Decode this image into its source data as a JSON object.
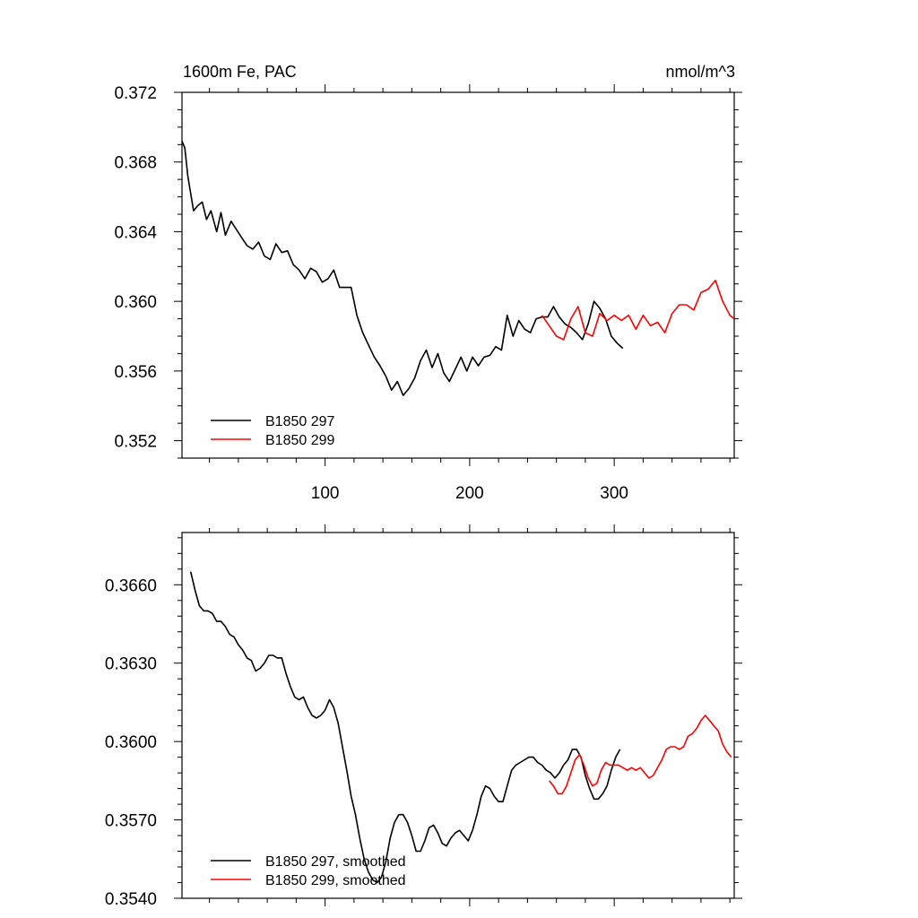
{
  "chart_data": [
    {
      "type": "line",
      "title": "1600m Fe, PAC",
      "units": "nmol/m^3",
      "xlabel": "",
      "ylabel": "",
      "xlim": [
        1,
        383
      ],
      "ylim": [
        0.351,
        0.372
      ],
      "y_ticks": [
        0.352,
        0.356,
        0.36,
        0.364,
        0.368,
        0.372
      ],
      "y_tick_labels": [
        "0.352",
        "0.356",
        "0.360",
        "0.364",
        "0.368",
        "0.372"
      ],
      "x_ticks": [
        100,
        200,
        300
      ],
      "x_tick_labels": [
        "100",
        "200",
        "300"
      ],
      "grid": false,
      "legend_position": "bottom-left",
      "series": [
        {
          "name": "B1850 297",
          "color": "#000000",
          "x": [
            1,
            3,
            5,
            7,
            9,
            12,
            15,
            18,
            21,
            25,
            28,
            31,
            35,
            38,
            42,
            46,
            50,
            54,
            58,
            62,
            66,
            70,
            74,
            78,
            82,
            86,
            90,
            94,
            98,
            102,
            106,
            110,
            114,
            118,
            122,
            126,
            130,
            134,
            138,
            142,
            146,
            150,
            154,
            158,
            162,
            166,
            170,
            174,
            178,
            182,
            186,
            190,
            194,
            198,
            202,
            206,
            210,
            214,
            218,
            222,
            226,
            230,
            234,
            238,
            242,
            246,
            250,
            254,
            258,
            262,
            266,
            270,
            274,
            278,
            282,
            286,
            290,
            294,
            298,
            302,
            306
          ],
          "values": [
            0.3692,
            0.3688,
            0.3672,
            0.3662,
            0.3652,
            0.3655,
            0.3657,
            0.3647,
            0.3652,
            0.364,
            0.3651,
            0.3638,
            0.3646,
            0.3642,
            0.3637,
            0.3632,
            0.363,
            0.3634,
            0.3626,
            0.3624,
            0.3633,
            0.3628,
            0.3629,
            0.3621,
            0.3618,
            0.3613,
            0.3619,
            0.3617,
            0.3611,
            0.3613,
            0.3618,
            0.3608,
            0.3608,
            0.3608,
            0.3592,
            0.3582,
            0.3575,
            0.3568,
            0.3563,
            0.3557,
            0.3549,
            0.3554,
            0.3546,
            0.355,
            0.3556,
            0.3566,
            0.3572,
            0.3562,
            0.357,
            0.3559,
            0.3554,
            0.3561,
            0.3568,
            0.356,
            0.3568,
            0.3563,
            0.3568,
            0.3569,
            0.3574,
            0.3572,
            0.3592,
            0.358,
            0.3589,
            0.3584,
            0.3582,
            0.359,
            0.3591,
            0.3591,
            0.3597,
            0.3591,
            0.3587,
            0.3585,
            0.3582,
            0.3578,
            0.3587,
            0.36,
            0.3596,
            0.359,
            0.358,
            0.3576,
            0.3573
          ]
        },
        {
          "name": "B1850 299",
          "color": "#ff0000",
          "x": [
            250,
            255,
            260,
            265,
            270,
            275,
            280,
            285,
            290,
            295,
            300,
            305,
            310,
            315,
            320,
            325,
            330,
            335,
            340,
            345,
            350,
            355,
            360,
            365,
            370,
            375,
            380,
            383
          ],
          "values": [
            0.3592,
            0.3586,
            0.358,
            0.3578,
            0.359,
            0.3597,
            0.3582,
            0.358,
            0.3593,
            0.3589,
            0.3592,
            0.3589,
            0.3592,
            0.3584,
            0.3592,
            0.3586,
            0.3588,
            0.3582,
            0.3593,
            0.3598,
            0.3598,
            0.3595,
            0.3605,
            0.3607,
            0.3612,
            0.36,
            0.3592,
            0.359
          ]
        }
      ]
    },
    {
      "type": "line",
      "title": "",
      "xlabel": "",
      "ylabel": "",
      "xlim": [
        1,
        383
      ],
      "ylim": [
        0.354,
        0.368
      ],
      "y_ticks": [
        0.354,
        0.357,
        0.36,
        0.363,
        0.366
      ],
      "y_tick_labels": [
        "0.3540",
        "0.3570",
        "0.3600",
        "0.3630",
        "0.3660"
      ],
      "grid": false,
      "legend_position": "bottom-left",
      "series": [
        {
          "name": "B1850 297, smoothed",
          "color": "#000000",
          "x": [
            7,
            10,
            13,
            16,
            19,
            22,
            25,
            28,
            31,
            34,
            37,
            40,
            43,
            46,
            49,
            52,
            55,
            58,
            61,
            64,
            67,
            70,
            73,
            76,
            79,
            82,
            85,
            88,
            91,
            94,
            97,
            100,
            103,
            106,
            109,
            112,
            115,
            118,
            121,
            124,
            127,
            130,
            133,
            136,
            139,
            142,
            145,
            148,
            151,
            154,
            157,
            160,
            163,
            166,
            169,
            172,
            175,
            178,
            181,
            184,
            187,
            190,
            193,
            196,
            199,
            202,
            205,
            208,
            211,
            214,
            217,
            220,
            223,
            226,
            229,
            232,
            235,
            238,
            241,
            244,
            247,
            250,
            253,
            256,
            259,
            262,
            265,
            268,
            271,
            274,
            277,
            280,
            283,
            286,
            289,
            292,
            295,
            298,
            301,
            304
          ],
          "values": [
            0.3665,
            0.3658,
            0.3652,
            0.365,
            0.365,
            0.3649,
            0.3646,
            0.3646,
            0.3644,
            0.3641,
            0.364,
            0.3637,
            0.3635,
            0.3632,
            0.3631,
            0.3627,
            0.3628,
            0.363,
            0.3633,
            0.3633,
            0.3632,
            0.3632,
            0.3626,
            0.3621,
            0.3617,
            0.3616,
            0.3617,
            0.3613,
            0.361,
            0.3609,
            0.361,
            0.3612,
            0.3616,
            0.3613,
            0.3607,
            0.3598,
            0.3589,
            0.3579,
            0.3572,
            0.3563,
            0.3555,
            0.355,
            0.3547,
            0.3546,
            0.3548,
            0.3554,
            0.3563,
            0.3569,
            0.3572,
            0.3572,
            0.3569,
            0.3564,
            0.3558,
            0.3558,
            0.3562,
            0.3567,
            0.3568,
            0.3565,
            0.3561,
            0.356,
            0.3563,
            0.3565,
            0.3566,
            0.3564,
            0.3562,
            0.3566,
            0.3572,
            0.3579,
            0.3583,
            0.3582,
            0.3579,
            0.3577,
            0.3577,
            0.3583,
            0.3589,
            0.3591,
            0.3592,
            0.3593,
            0.3594,
            0.3594,
            0.3592,
            0.3591,
            0.3589,
            0.3588,
            0.3586,
            0.3588,
            0.3591,
            0.3593,
            0.3597,
            0.3597,
            0.3594,
            0.3587,
            0.3582,
            0.3578,
            0.3578,
            0.358,
            0.3583,
            0.3589,
            0.3594,
            0.3597
          ]
        },
        {
          "name": "B1850 299, smoothed",
          "color": "#ff0000",
          "x": [
            255,
            258,
            261,
            264,
            267,
            270,
            273,
            276,
            279,
            282,
            285,
            288,
            291,
            294,
            297,
            300,
            303,
            306,
            309,
            312,
            315,
            318,
            321,
            324,
            327,
            330,
            333,
            336,
            339,
            342,
            345,
            348,
            351,
            354,
            357,
            360,
            363,
            366,
            369,
            372,
            375,
            378,
            381
          ],
          "values": [
            0.3585,
            0.3583,
            0.358,
            0.358,
            0.3583,
            0.3588,
            0.3593,
            0.3595,
            0.3591,
            0.3586,
            0.3583,
            0.3584,
            0.3589,
            0.3592,
            0.3591,
            0.3591,
            0.3591,
            0.359,
            0.3589,
            0.359,
            0.3589,
            0.359,
            0.3588,
            0.3586,
            0.3587,
            0.359,
            0.3593,
            0.3597,
            0.3598,
            0.3598,
            0.3597,
            0.3598,
            0.3602,
            0.3603,
            0.3605,
            0.3608,
            0.361,
            0.3608,
            0.3606,
            0.3604,
            0.3599,
            0.3596,
            0.3594
          ]
        }
      ]
    }
  ]
}
